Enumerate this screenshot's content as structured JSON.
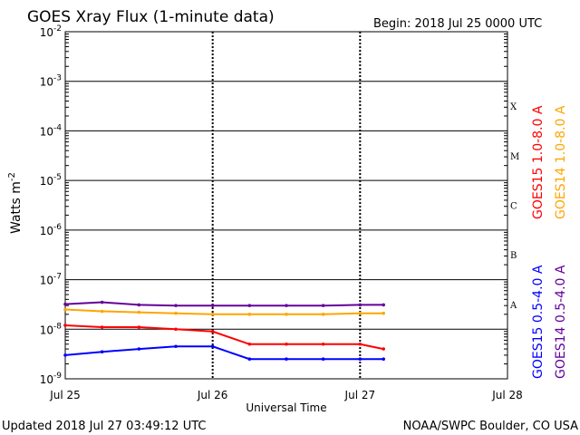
{
  "header": {
    "title": "GOES Xray Flux (1-minute data)",
    "begin": "Begin:  2018 Jul 25 0000 UTC"
  },
  "footer": {
    "updated": "Updated 2018 Jul 27 03:49:12 UTC",
    "source": "NOAA/SWPC Boulder, CO USA"
  },
  "chart_data": {
    "type": "line",
    "title": "GOES Xray Flux (1-minute data)",
    "xlabel": "Universal Time",
    "ylabel": "Watts m",
    "ylabel_superscript": "-2",
    "y_scale": "log",
    "ylim": [
      1e-09,
      0.01
    ],
    "xlim": [
      "2018-07-25 00:00",
      "2018-07-28 00:00"
    ],
    "x_ticks": [
      "Jul 25",
      "Jul 26",
      "Jul 27",
      "Jul 28"
    ],
    "y_ticks": [
      {
        "base": "10",
        "exp": "-2"
      },
      {
        "base": "10",
        "exp": "-3"
      },
      {
        "base": "10",
        "exp": "-4"
      },
      {
        "base": "10",
        "exp": "-5"
      },
      {
        "base": "10",
        "exp": "-6"
      },
      {
        "base": "10",
        "exp": "-7"
      },
      {
        "base": "10",
        "exp": "-8"
      },
      {
        "base": "10",
        "exp": "-9"
      }
    ],
    "flare_classes": [
      "X",
      "M",
      "C",
      "B",
      "A"
    ],
    "grid": true,
    "series": [
      {
        "name": "GOES15 1.0-8.0 A",
        "color": "#ff0000",
        "x": [
          "2018-07-25 00:00",
          "2018-07-25 06:00",
          "2018-07-25 12:00",
          "2018-07-25 18:00",
          "2018-07-26 00:00",
          "2018-07-26 06:00",
          "2018-07-26 12:00",
          "2018-07-26 18:00",
          "2018-07-27 00:00",
          "2018-07-27 03:49"
        ],
        "y": [
          1.2e-08,
          1.1e-08,
          1.1e-08,
          1e-08,
          9e-09,
          5e-09,
          5e-09,
          5e-09,
          5e-09,
          4e-09
        ]
      },
      {
        "name": "GOES14 1.0-8.0 A",
        "color": "#ffa500",
        "x": [
          "2018-07-25 00:00",
          "2018-07-25 06:00",
          "2018-07-25 12:00",
          "2018-07-25 18:00",
          "2018-07-26 00:00",
          "2018-07-26 06:00",
          "2018-07-26 12:00",
          "2018-07-26 18:00",
          "2018-07-27 00:00",
          "2018-07-27 03:49"
        ],
        "y": [
          2.5e-08,
          2.3e-08,
          2.2e-08,
          2.1e-08,
          2e-08,
          2e-08,
          2e-08,
          2e-08,
          2.1e-08,
          2.1e-08
        ]
      },
      {
        "name": "GOES15 0.5-4.0 A",
        "color": "#0000ff",
        "x": [
          "2018-07-25 00:00",
          "2018-07-25 06:00",
          "2018-07-25 12:00",
          "2018-07-25 18:00",
          "2018-07-26 00:00",
          "2018-07-26 06:00",
          "2018-07-26 12:00",
          "2018-07-26 18:00",
          "2018-07-27 00:00",
          "2018-07-27 03:49"
        ],
        "y": [
          3e-09,
          3.5e-09,
          4e-09,
          4.5e-09,
          4.5e-09,
          2.5e-09,
          2.5e-09,
          2.5e-09,
          2.5e-09,
          2.5e-09
        ]
      },
      {
        "name": "GOES14 0.5-4.0 A",
        "color": "#660099",
        "x": [
          "2018-07-25 00:00",
          "2018-07-25 06:00",
          "2018-07-25 12:00",
          "2018-07-25 18:00",
          "2018-07-26 00:00",
          "2018-07-26 06:00",
          "2018-07-26 12:00",
          "2018-07-26 18:00",
          "2018-07-27 00:00",
          "2018-07-27 03:49"
        ],
        "y": [
          3.2e-08,
          3.5e-08,
          3.1e-08,
          3e-08,
          3e-08,
          3e-08,
          3e-08,
          3e-08,
          3.1e-08,
          3.1e-08
        ]
      }
    ]
  }
}
